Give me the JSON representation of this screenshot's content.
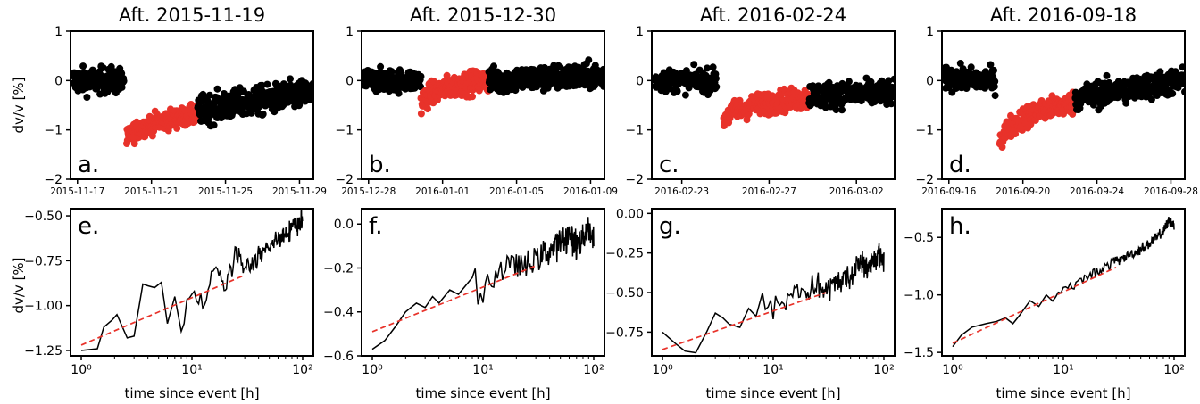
{
  "figure": {
    "top_ylabel": "dv/v [%]",
    "bottom_ylabel": "dv/v [%]",
    "xlabel": "time since event [h]"
  },
  "colors": {
    "before_after": "#000000",
    "recovery": "#e8322a",
    "fit": "#e8322a",
    "line": "#000000"
  },
  "chart_data": [
    {
      "panel": "a.",
      "type": "scatter",
      "title": "Aft. 2015-11-19",
      "ylim": [
        -2,
        1
      ],
      "yticks": [
        1,
        0,
        -1,
        -2
      ],
      "xlim": [
        "2015-11-16T15:00",
        "2015-11-29T18:00"
      ],
      "xticks": [
        "2015-11-17",
        "2015-11-21",
        "2015-11-25",
        "2015-11-29"
      ],
      "event": "2015-11-19T16:00",
      "segments": [
        {
          "color": "black",
          "from": "2015-11-16T18:00",
          "to": "2015-11-19T12:00",
          "mean_start": 0.0,
          "mean_end": 0.0,
          "spread": 0.4
        },
        {
          "color": "red",
          "from": "2015-11-19T16:00",
          "to": "2015-11-23T12:00",
          "mean_start": -1.2,
          "mean_end": -0.7,
          "spread": 0.3
        },
        {
          "color": "black",
          "from": "2015-11-23T12:00",
          "to": "2015-11-29T18:00",
          "mean_start": -0.6,
          "mean_end": -0.25,
          "spread": 0.45
        }
      ]
    },
    {
      "panel": "b.",
      "type": "scatter",
      "title": "Aft. 2015-12-30",
      "ylim": [
        -2,
        1
      ],
      "yticks": [
        1,
        0,
        -1,
        -2
      ],
      "xlim": [
        "2015-12-27T15:00",
        "2016-01-09T18:00"
      ],
      "xticks": [
        "2015-12-28",
        "2016-01-01",
        "2016-01-05",
        "2016-01-09"
      ],
      "event": "2015-12-30T20:00",
      "segments": [
        {
          "color": "black",
          "from": "2015-12-27T18:00",
          "to": "2015-12-30T20:00",
          "mean_start": 0.0,
          "mean_end": 0.0,
          "spread": 0.35
        },
        {
          "color": "red",
          "from": "2015-12-30T20:00",
          "to": "2016-01-03T12:00",
          "mean_start": -0.45,
          "mean_end": 0.0,
          "spread": 0.35
        },
        {
          "color": "black",
          "from": "2016-01-03T12:00",
          "to": "2016-01-09T18:00",
          "mean_start": 0.0,
          "mean_end": 0.1,
          "spread": 0.4
        }
      ]
    },
    {
      "panel": "c.",
      "type": "scatter",
      "title": "Aft. 2016-02-24",
      "ylim": [
        -2,
        1
      ],
      "yticks": [
        1,
        0,
        -1,
        -2
      ],
      "xlim": [
        "2016-02-21T15:00",
        "2016-03-03T18:00"
      ],
      "xticks": [
        "2016-02-23",
        "2016-02-27",
        "2016-03-02"
      ],
      "event": "2016-02-24T22:00",
      "segments": [
        {
          "color": "black",
          "from": "2016-02-21T18:00",
          "to": "2016-02-24T14:00",
          "mean_start": 0.0,
          "mean_end": 0.0,
          "spread": 0.35
        },
        {
          "color": "red",
          "from": "2016-02-24T22:00",
          "to": "2016-02-28T20:00",
          "mean_start": -0.8,
          "mean_end": -0.35,
          "spread": 0.35
        },
        {
          "color": "black",
          "from": "2016-02-28T20:00",
          "to": "2016-03-03T18:00",
          "mean_start": -0.3,
          "mean_end": -0.25,
          "spread": 0.4
        }
      ]
    },
    {
      "panel": "d.",
      "type": "scatter",
      "title": "Aft. 2016-09-18",
      "ylim": [
        -2,
        1
      ],
      "yticks": [
        1,
        0,
        -1,
        -2
      ],
      "xlim": [
        "2016-09-15T15:00",
        "2016-09-28T18:00"
      ],
      "xticks": [
        "2016-09-16",
        "2016-09-20",
        "2016-09-24",
        "2016-09-28"
      ],
      "event": "2016-09-18T18:00",
      "segments": [
        {
          "color": "black",
          "from": "2016-09-15T18:00",
          "to": "2016-09-18T12:00",
          "mean_start": 0.05,
          "mean_end": 0.0,
          "spread": 0.35
        },
        {
          "color": "red",
          "from": "2016-09-18T18:00",
          "to": "2016-09-22T20:00",
          "mean_start": -1.25,
          "mean_end": -0.45,
          "spread": 0.35
        },
        {
          "color": "black",
          "from": "2016-09-22T20:00",
          "to": "2016-09-28T18:00",
          "mean_start": -0.35,
          "mean_end": 0.0,
          "spread": 0.4
        }
      ]
    },
    {
      "panel": "e.",
      "type": "line",
      "xscale": "log",
      "xlim": [
        0.8,
        125
      ],
      "xticks": [
        1,
        10,
        100
      ],
      "xticklabels": [
        "10⁰",
        "10¹",
        "10²"
      ],
      "ylim": [
        -1.28,
        -0.46
      ],
      "yticks": [
        -0.5,
        -0.75,
        -1.0,
        -1.25
      ],
      "yticklabels": [
        "−0.50",
        "−0.75",
        "−1.00",
        "−1.25"
      ],
      "fit": {
        "x": [
          1,
          30
        ],
        "y": [
          -1.22,
          -0.83
        ]
      },
      "anchors": [
        [
          1,
          -1.25
        ],
        [
          1.4,
          -1.24
        ],
        [
          1.6,
          -1.12
        ],
        [
          1.9,
          -1.08
        ],
        [
          2.1,
          -1.05
        ],
        [
          2.6,
          -1.18
        ],
        [
          3.0,
          -1.17
        ],
        [
          3.6,
          -0.88
        ],
        [
          4.0,
          -0.89
        ],
        [
          4.6,
          -0.9
        ],
        [
          5.3,
          -0.87
        ],
        [
          6.0,
          -1.1
        ],
        [
          7.0,
          -0.95
        ],
        [
          8.0,
          -1.1
        ],
        [
          10,
          -0.9
        ],
        [
          13,
          -1.0
        ],
        [
          16,
          -0.75
        ],
        [
          20,
          -0.9
        ],
        [
          25,
          -0.7
        ],
        [
          30,
          -0.8
        ],
        [
          40,
          -0.73
        ],
        [
          50,
          -0.68
        ],
        [
          60,
          -0.62
        ],
        [
          70,
          -0.6
        ],
        [
          80,
          -0.56
        ],
        [
          90,
          -0.55
        ],
        [
          100,
          -0.52
        ]
      ],
      "noise": 0.05
    },
    {
      "panel": "f.",
      "type": "line",
      "xscale": "log",
      "xlim": [
        0.8,
        125
      ],
      "xticks": [
        1,
        10,
        100
      ],
      "xticklabels": [
        "10⁰",
        "10¹",
        "10²"
      ],
      "ylim": [
        -0.6,
        0.07
      ],
      "yticks": [
        0.0,
        -0.2,
        -0.4,
        -0.6
      ],
      "yticklabels": [
        "0.0",
        "−0.2",
        "−0.4",
        "−0.6"
      ],
      "fit": {
        "x": [
          1,
          30
        ],
        "y": [
          -0.49,
          -0.19
        ]
      },
      "anchors": [
        [
          1,
          -0.57
        ],
        [
          1.3,
          -0.53
        ],
        [
          1.6,
          -0.47
        ],
        [
          2.0,
          -0.4
        ],
        [
          2.5,
          -0.36
        ],
        [
          3.0,
          -0.38
        ],
        [
          3.5,
          -0.33
        ],
        [
          4.0,
          -0.36
        ],
        [
          5.0,
          -0.3
        ],
        [
          6.0,
          -0.32
        ],
        [
          8.0,
          -0.28
        ],
        [
          10,
          -0.3
        ],
        [
          13,
          -0.22
        ],
        [
          16,
          -0.2
        ],
        [
          20,
          -0.18
        ],
        [
          25,
          -0.2
        ],
        [
          30,
          -0.15
        ],
        [
          40,
          -0.12
        ],
        [
          50,
          -0.08
        ],
        [
          60,
          -0.05
        ],
        [
          70,
          -0.1
        ],
        [
          80,
          -0.05
        ],
        [
          90,
          -0.02
        ],
        [
          100,
          -0.08
        ]
      ],
      "noise": 0.06
    },
    {
      "panel": "g.",
      "type": "line",
      "xscale": "log",
      "xlim": [
        0.8,
        125
      ],
      "xticks": [
        1,
        10,
        100
      ],
      "xticklabels": [
        "10⁰",
        "10¹",
        "10²"
      ],
      "ylim": [
        -0.9,
        0.03
      ],
      "yticks": [
        0.0,
        -0.25,
        -0.5,
        -0.75
      ],
      "yticklabels": [
        "0.00",
        "−0.25",
        "−0.50",
        "−0.75"
      ],
      "fit": {
        "x": [
          1,
          30
        ],
        "y": [
          -0.86,
          -0.5
        ]
      },
      "anchors": [
        [
          1,
          -0.75
        ],
        [
          1.3,
          -0.82
        ],
        [
          1.6,
          -0.87
        ],
        [
          2.0,
          -0.88
        ],
        [
          2.5,
          -0.75
        ],
        [
          3.0,
          -0.63
        ],
        [
          3.5,
          -0.66
        ],
        [
          4.0,
          -0.7
        ],
        [
          5.0,
          -0.72
        ],
        [
          6.0,
          -0.6
        ],
        [
          7.0,
          -0.65
        ],
        [
          8.0,
          -0.55
        ],
        [
          10,
          -0.6
        ],
        [
          13,
          -0.55
        ],
        [
          16,
          -0.48
        ],
        [
          20,
          -0.5
        ],
        [
          25,
          -0.45
        ],
        [
          30,
          -0.5
        ],
        [
          40,
          -0.42
        ],
        [
          50,
          -0.4
        ],
        [
          60,
          -0.3
        ],
        [
          70,
          -0.35
        ],
        [
          80,
          -0.3
        ],
        [
          90,
          -0.25
        ],
        [
          100,
          -0.3
        ]
      ],
      "noise": 0.07
    },
    {
      "panel": "h.",
      "type": "line",
      "xscale": "log",
      "xlim": [
        0.8,
        125
      ],
      "xticks": [
        1,
        10,
        100
      ],
      "xticklabels": [
        "10⁰",
        "10¹",
        "10²"
      ],
      "ylim": [
        -1.53,
        -0.25
      ],
      "yticks": [
        -0.5,
        -1.0,
        -1.5
      ],
      "yticklabels": [
        "−0.5",
        "−1.0",
        "−1.5"
      ],
      "fit": {
        "x": [
          1,
          30
        ],
        "y": [
          -1.42,
          -0.76
        ]
      },
      "anchors": [
        [
          1,
          -1.45
        ],
        [
          1.2,
          -1.35
        ],
        [
          1.5,
          -1.28
        ],
        [
          2.0,
          -1.25
        ],
        [
          2.5,
          -1.23
        ],
        [
          3.0,
          -1.2
        ],
        [
          3.5,
          -1.25
        ],
        [
          4.0,
          -1.18
        ],
        [
          5.0,
          -1.05
        ],
        [
          6.0,
          -1.1
        ],
        [
          7.0,
          -1.0
        ],
        [
          8.0,
          -1.02
        ],
        [
          10,
          -0.95
        ],
        [
          13,
          -0.9
        ],
        [
          16,
          -0.85
        ],
        [
          20,
          -0.8
        ],
        [
          25,
          -0.75
        ],
        [
          30,
          -0.7
        ],
        [
          40,
          -0.65
        ],
        [
          50,
          -0.6
        ],
        [
          60,
          -0.55
        ],
        [
          70,
          -0.5
        ],
        [
          80,
          -0.45
        ],
        [
          90,
          -0.35
        ],
        [
          100,
          -0.4
        ]
      ],
      "noise": 0.04
    }
  ]
}
